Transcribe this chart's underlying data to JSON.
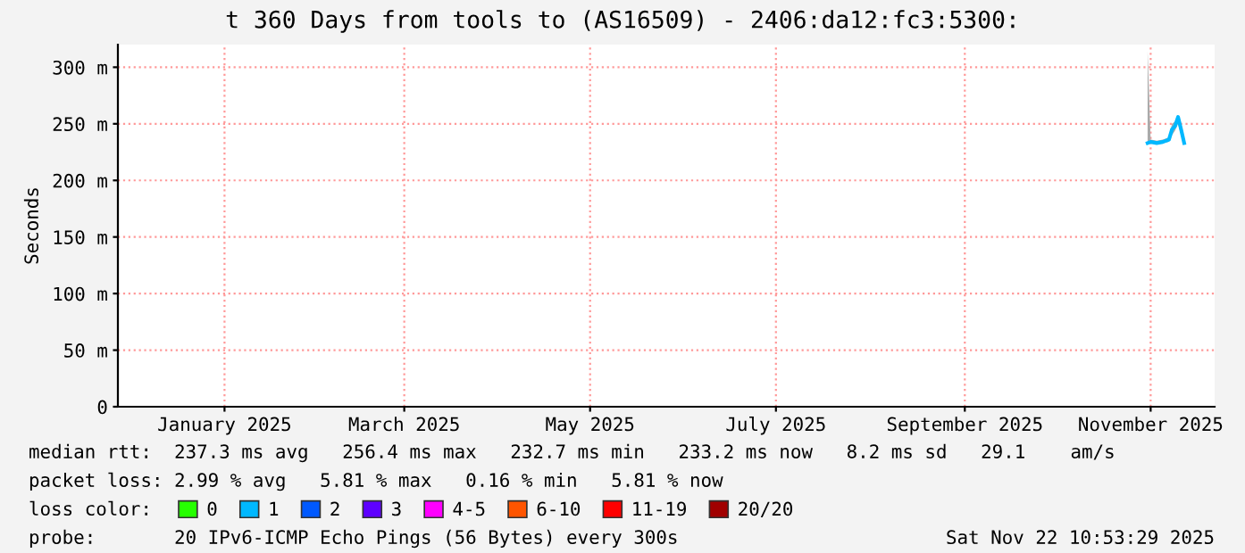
{
  "chart_data": {
    "type": "line",
    "title": "t 360 Days from tools to (AS16509) - 2406:da12:fc3:5300:",
    "ylabel": "Seconds",
    "x": [
      "2025-10-31",
      "2025-11-01",
      "2025-11-03",
      "2025-11-05",
      "2025-11-07",
      "2025-11-08",
      "2025-11-09",
      "2025-11-10",
      "2025-11-11",
      "2025-11-12"
    ],
    "series": [
      {
        "name": "0",
        "color": "#26ff00",
        "values": [
          null,
          null,
          null,
          null,
          null,
          null,
          null,
          null,
          null,
          null
        ]
      },
      {
        "name": "1",
        "color": "#00b8ff",
        "values": [
          233,
          234,
          233,
          234,
          236,
          245,
          248,
          256,
          245,
          233
        ],
        "lower": [
          232,
          233,
          232,
          233,
          234,
          240,
          244,
          250,
          240,
          232
        ],
        "upper": [
          314,
          236,
          235,
          236,
          238,
          250,
          252,
          258,
          250,
          235
        ]
      },
      {
        "name": "2",
        "color": "#0059ff",
        "values": [
          null,
          null,
          null,
          null,
          null,
          null,
          null,
          null,
          null,
          null
        ]
      },
      {
        "name": "3",
        "color": "#5e00ff",
        "values": [
          null,
          null,
          null,
          null,
          null,
          null,
          null,
          null,
          null,
          null
        ]
      },
      {
        "name": "4-5",
        "color": "#ff00ff",
        "values": [
          null,
          null,
          null,
          null,
          null,
          null,
          null,
          null,
          null,
          null
        ]
      },
      {
        "name": "6-10",
        "color": "#ff5500",
        "values": [
          null,
          null,
          null,
          null,
          null,
          null,
          null,
          null,
          null,
          null
        ]
      },
      {
        "name": "11-19",
        "color": "#ff0000",
        "values": [
          null,
          null,
          null,
          null,
          null,
          null,
          null,
          null,
          null,
          null
        ]
      },
      {
        "name": "20/20",
        "color": "#a10000",
        "values": [
          null,
          null,
          null,
          null,
          null,
          null,
          null,
          null,
          null,
          null
        ]
      }
    ],
    "legend_title": "loss color:",
    "legend": "bottom",
    "xlim": [
      "2024-11-27",
      "2025-11-22"
    ],
    "xticks": [
      {
        "value": "2025-01-01",
        "label": "January 2025"
      },
      {
        "value": "2025-03-01",
        "label": "March 2025"
      },
      {
        "value": "2025-05-01",
        "label": "May 2025"
      },
      {
        "value": "2025-07-01",
        "label": "July 2025"
      },
      {
        "value": "2025-09-01",
        "label": "September 2025"
      },
      {
        "value": "2025-11-01",
        "label": "November 2025"
      }
    ],
    "ylim": [
      0,
      320
    ],
    "yticks": [
      0,
      {
        "value": 50,
        "label": "50 m"
      },
      {
        "value": 100,
        "label": "100 m"
      },
      {
        "value": 150,
        "label": "150 m"
      },
      {
        "value": 200,
        "label": "200 m"
      },
      {
        "value": 250,
        "label": "250 m"
      },
      {
        "value": 300,
        "label": "300 m"
      }
    ],
    "grid": true,
    "line_style": "solid",
    "annotations": [
      "median rtt:  237.3 ms avg   256.4 ms max   232.7 ms min   233.2 ms now   8.2 ms sd   29.1    am/s",
      "packet loss: 2.99 % avg   5.81 % max   0.16 % min   5.81 % now",
      "probe:       20 IPv6-ICMP Echo Pings (56 Bytes) every 300s",
      "Sat Nov 22 10:53:29 2025"
    ]
  }
}
